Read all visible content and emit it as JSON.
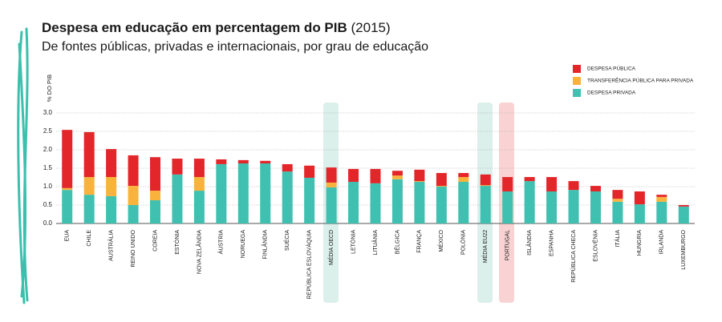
{
  "chart_data": {
    "type": "stacked_bar",
    "title": "Despesa em educação em percentagem do PIB",
    "title_note": "(2015)",
    "subtitle": "De fontes públicas, privadas e internacionais, por grau de educação",
    "y_label": "% DO PIB",
    "categories": [
      "EUA",
      "CHILE",
      "AUSTRÁLIA",
      "REINO UNIDO",
      "COREIA",
      "ESTÓNIA",
      "NOVA ZELÂNDIA",
      "ÁUSTRIA",
      "NORUEGA",
      "FINLÂNDIA",
      "SUÉCIA",
      "REPÚBLICA ESLOVÁQUIA",
      "MÉDIA OECD",
      "LETÓNIA",
      "LITUÂNIA",
      "BÉLGICA",
      "FRANÇA",
      "MÉXICO",
      "POLÓNIA",
      "MÉDIA EU22",
      "PORTUGAL",
      "ISLÂNDIA",
      "ESPANHA",
      "REPÚBLICA CHECA",
      "ESLOVÉNIA",
      "ITÁLIA",
      "HUNGRIA",
      "IRLANDA",
      "LUXEMBURGO"
    ],
    "series": [
      {
        "name": "DESPESA PÚBLICA",
        "color": "#e3262a",
        "values": [
          1.58,
          1.22,
          0.76,
          0.83,
          0.91,
          0.43,
          0.5,
          0.13,
          0.09,
          0.07,
          0.2,
          0.33,
          0.41,
          0.35,
          0.39,
          0.13,
          0.31,
          0.35,
          0.11,
          0.29,
          0.39,
          0.11,
          0.39,
          0.24,
          0.15,
          0.24,
          0.35,
          0.06,
          0.04
        ]
      },
      {
        "name": "TRANSFERÊNCIA PÚBLICA PARA PRIVADA",
        "color": "#f9b33d",
        "values": [
          0.05,
          0.48,
          0.52,
          0.52,
          0.26,
          0,
          0.37,
          0,
          0,
          0,
          0,
          0,
          0.13,
          0,
          0,
          0.1,
          0.02,
          0.02,
          0.13,
          0.02,
          0,
          0,
          0,
          0,
          0,
          0.08,
          0,
          0.13,
          0
        ]
      },
      {
        "name": "DESPESA PRIVADA",
        "color": "#40c0b0",
        "values": [
          0.91,
          0.78,
          0.74,
          0.5,
          0.63,
          1.33,
          0.89,
          1.61,
          1.63,
          1.63,
          1.41,
          1.24,
          0.98,
          1.13,
          1.09,
          1.2,
          1.13,
          1.0,
          1.13,
          1.02,
          0.87,
          1.15,
          0.87,
          0.91,
          0.87,
          0.59,
          0.52,
          0.59,
          0.46
        ]
      }
    ],
    "ylim": [
      0,
      3.1
    ],
    "yticks": [
      {
        "value": 0,
        "label": "0.0"
      },
      0.5,
      {
        "value": 1,
        "label": "1.0"
      },
      1.5,
      {
        "value": 2,
        "label": "2.0"
      },
      2.5,
      {
        "value": 3,
        "label": "3.0"
      }
    ],
    "grid": true,
    "legend": "top-right"
  }
}
